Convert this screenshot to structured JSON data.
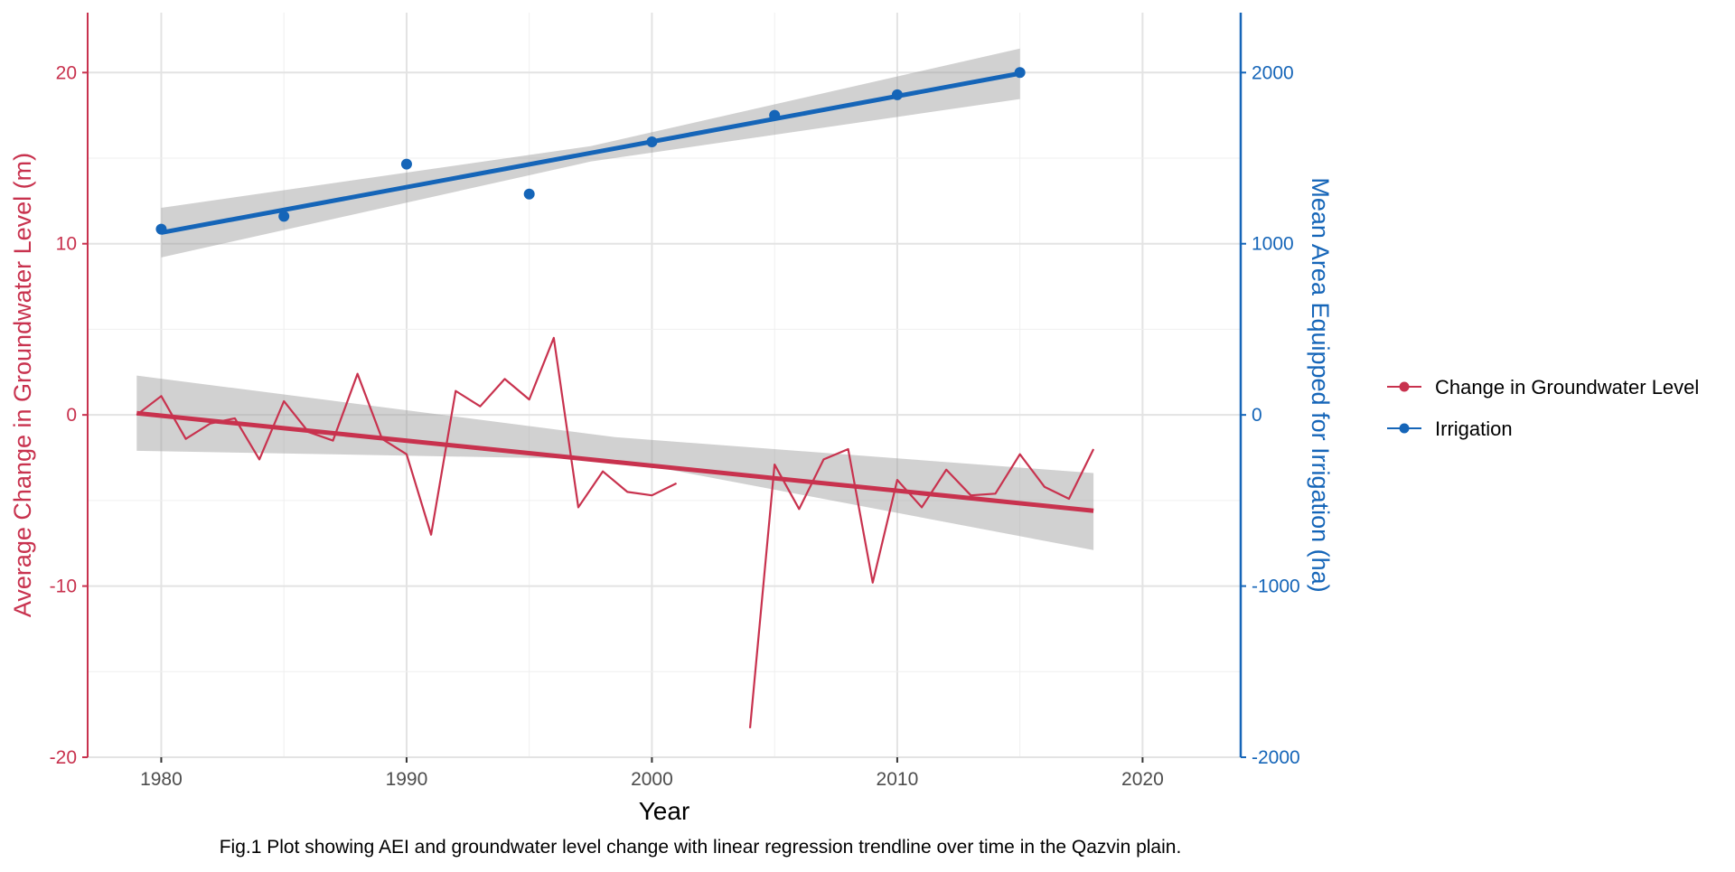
{
  "chart_data": {
    "type": "line",
    "xlabel": "Year",
    "xlim": [
      1977,
      2024
    ],
    "x_ticks": [
      1980,
      1990,
      2000,
      2010,
      2020
    ],
    "x_tick_labels": [
      "1980",
      "1990",
      "2000",
      "2010",
      "2020"
    ],
    "grid": true,
    "legend_position": "right",
    "left_axis": {
      "label": "Average Change in Groundwater Level (m)",
      "ylim": [
        -20,
        23.5
      ],
      "ticks": [
        -20,
        -10,
        0,
        10,
        20
      ],
      "tick_labels": [
        "-20",
        "-10",
        "0",
        "10",
        "20"
      ],
      "color": "#c8324e"
    },
    "right_axis": {
      "label": "Mean Area Equipped for Irrigation (ha)",
      "ylim": [
        -2000,
        2350
      ],
      "ticks": [
        -2000,
        -1000,
        0,
        1000,
        2000
      ],
      "tick_labels": [
        "-2000",
        "-1000",
        "0",
        "1000",
        "2000"
      ],
      "color": "#1565b8"
    },
    "series": [
      {
        "name": "Change in Groundwater Level",
        "axis": "left",
        "type": "line",
        "color": "#c8324e",
        "segments": [
          {
            "x": [
              1979,
              1980,
              1981,
              1982,
              1983,
              1984,
              1985,
              1986,
              1987,
              1988,
              1989,
              1990,
              1991,
              1992,
              1993,
              1994,
              1995,
              1996,
              1997,
              1998,
              1999,
              2000,
              2001
            ],
            "y": [
              0.0,
              1.1,
              -1.4,
              -0.5,
              -0.2,
              -2.6,
              0.8,
              -1.0,
              -1.5,
              2.4,
              -1.4,
              -2.3,
              -7.0,
              1.4,
              0.5,
              2.1,
              0.9,
              4.5,
              -5.4,
              -3.3,
              -4.5,
              -4.7,
              -4.0
            ]
          },
          {
            "x": [
              2004,
              2005,
              2006,
              2007,
              2008,
              2009,
              2010,
              2011,
              2012,
              2013,
              2014,
              2015,
              2016,
              2017,
              2018
            ],
            "y": [
              -18.3,
              -2.9,
              -5.5,
              -2.6,
              -2.0,
              -9.8,
              -3.8,
              -5.4,
              -3.2,
              -4.7,
              -4.6,
              -2.3,
              -4.2,
              -4.9,
              -2.0
            ]
          }
        ],
        "trend": {
          "x": [
            1979,
            2018
          ],
          "y": [
            0.1,
            -5.6
          ]
        },
        "confidence_band": {
          "x": [
            1979,
            1998.5,
            2018
          ],
          "lower": [
            -2.1,
            -2.6,
            -7.9
          ],
          "upper": [
            2.3,
            -1.3,
            -3.4
          ]
        }
      },
      {
        "name": "Irrigation",
        "axis": "right",
        "type": "scatter",
        "color": "#1565b8",
        "x": [
          1980,
          1985,
          1990,
          1995,
          2000,
          2005,
          2010,
          2015
        ],
        "y": [
          1085,
          1160,
          1465,
          1290,
          1595,
          1750,
          1870,
          2000
        ],
        "trend": {
          "x": [
            1980,
            2015
          ],
          "y": [
            1065,
            1995
          ]
        },
        "confidence_band": {
          "x": [
            1980,
            1997.5,
            2015
          ],
          "lower": [
            920,
            1480,
            1845
          ],
          "upper": [
            1210,
            1570,
            2140
          ]
        }
      }
    ]
  },
  "legend": {
    "items": [
      {
        "label": "Change in Groundwater Level",
        "color": "#c8324e"
      },
      {
        "label": "Irrigation",
        "color": "#1565b8"
      }
    ]
  },
  "caption": "Fig.1 Plot showing AEI and groundwater level change with linear regression trendline over time in the Qazvin plain."
}
